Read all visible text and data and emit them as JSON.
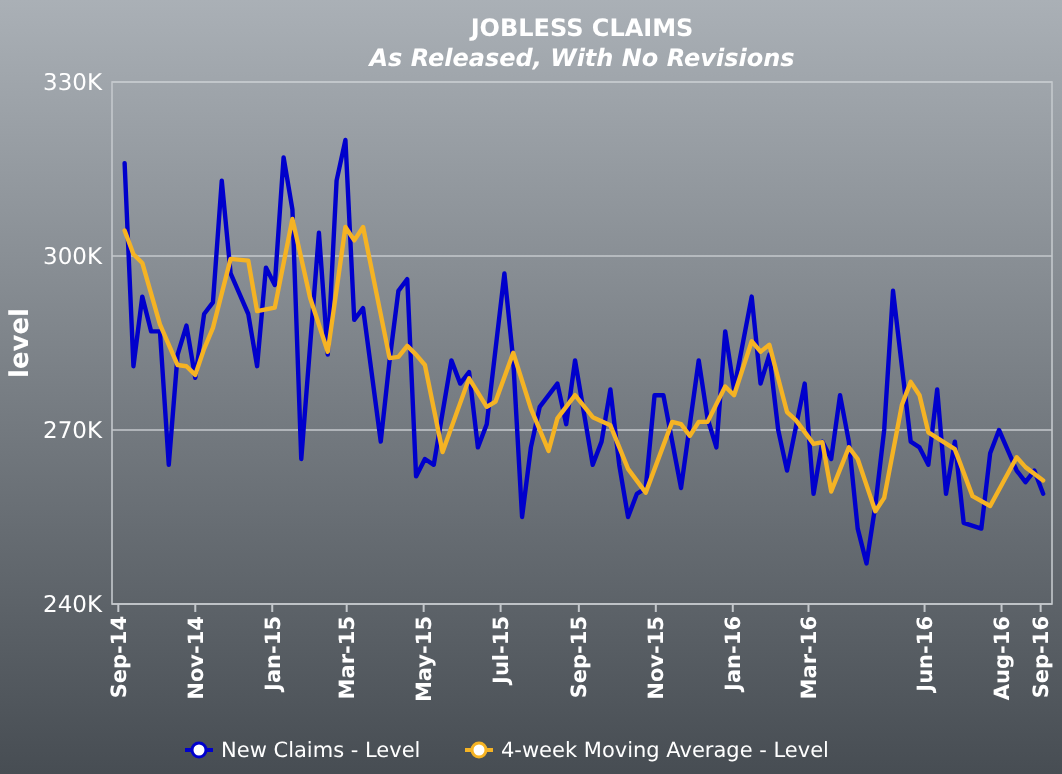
{
  "chart_data": {
    "type": "line",
    "title": "JOBLESS CLAIMS",
    "subtitle": "As Released, With No Revisions",
    "ylabel": "level",
    "xlim": [
      "2014-08-27",
      "2016-09-10"
    ],
    "xticks": [
      {
        "value": "2014-09-01",
        "label": "Sep-14"
      },
      {
        "value": "2014-11-01",
        "label": "Nov-14"
      },
      {
        "value": "2015-01-01",
        "label": "Jan-15"
      },
      {
        "value": "2015-03-01",
        "label": "Mar-15"
      },
      {
        "value": "2015-05-01",
        "label": "May-15"
      },
      {
        "value": "2015-07-01",
        "label": "Jul-15"
      },
      {
        "value": "2015-09-01",
        "label": "Sep-15"
      },
      {
        "value": "2015-11-01",
        "label": "Nov-15"
      },
      {
        "value": "2016-01-01",
        "label": "Jan-16"
      },
      {
        "value": "2016-03-01",
        "label": "Mar-16"
      },
      {
        "value": "2016-06-01",
        "label": "Jun-16"
      },
      {
        "value": "2016-08-01",
        "label": "Aug-16"
      },
      {
        "value": "2016-09-01",
        "label": "Sep-16"
      }
    ],
    "ylim": [
      240,
      330
    ],
    "yticks": [
      {
        "value": 240,
        "label": "240K"
      },
      {
        "value": 270,
        "label": "270K"
      },
      {
        "value": 300,
        "label": "300K"
      },
      {
        "value": 330,
        "label": "330K"
      }
    ],
    "grid": "y",
    "legend": "bottom",
    "series": [
      {
        "name": "New Claims - Level",
        "color": "#0000cc",
        "x": [
          "2014-09-06",
          "2014-09-13",
          "2014-09-20",
          "2014-09-27",
          "2014-10-04",
          "2014-10-11",
          "2014-10-18",
          "2014-10-25",
          "2014-11-01",
          "2014-11-08",
          "2014-11-15",
          "2014-11-22",
          "2014-11-29",
          "2014-12-13",
          "2014-12-20",
          "2014-12-27",
          "2015-01-03",
          "2015-01-10",
          "2015-01-17",
          "2015-01-24",
          "2015-02-07",
          "2015-02-14",
          "2015-02-21",
          "2015-02-28",
          "2015-03-07",
          "2015-03-14",
          "2015-03-28",
          "2015-04-04",
          "2015-04-11",
          "2015-04-18",
          "2015-04-25",
          "2015-05-02",
          "2015-05-09",
          "2015-05-23",
          "2015-05-30",
          "2015-06-06",
          "2015-06-13",
          "2015-06-20",
          "2015-07-04",
          "2015-07-11",
          "2015-07-18",
          "2015-07-25",
          "2015-08-01",
          "2015-08-15",
          "2015-08-22",
          "2015-08-29",
          "2015-09-12",
          "2015-09-19",
          "2015-09-26",
          "2015-10-03",
          "2015-10-10",
          "2015-10-17",
          "2015-10-24",
          "2015-10-31",
          "2015-11-07",
          "2015-11-21",
          "2015-12-05",
          "2015-12-12",
          "2015-12-19",
          "2015-12-26",
          "2016-01-02",
          "2016-01-16",
          "2016-01-23",
          "2016-01-30",
          "2016-02-06",
          "2016-02-13",
          "2016-02-27",
          "2016-03-05",
          "2016-03-12",
          "2016-03-19",
          "2016-03-26",
          "2016-04-02",
          "2016-04-09",
          "2016-04-16",
          "2016-04-23",
          "2016-04-30",
          "2016-05-07",
          "2016-05-14",
          "2016-05-21",
          "2016-05-28",
          "2016-06-04",
          "2016-06-11",
          "2016-06-18",
          "2016-06-25",
          "2016-07-02",
          "2016-07-16",
          "2016-07-23",
          "2016-07-30",
          "2016-08-13",
          "2016-08-20",
          "2016-08-27",
          "2016-09-03"
        ],
        "values": [
          316,
          281,
          293,
          287,
          287,
          264,
          283,
          288,
          279,
          290,
          292,
          313,
          297,
          290,
          281,
          298,
          295,
          317,
          308,
          265,
          304,
          283,
          313,
          320,
          289,
          291,
          268,
          282,
          294,
          296,
          262,
          265,
          264,
          282,
          278,
          280,
          267,
          271,
          297,
          282,
          255,
          267,
          274,
          278,
          271,
          282,
          264,
          268,
          277,
          264,
          255,
          259,
          260,
          276,
          276,
          260,
          282,
          272,
          267,
          287,
          277,
          293,
          278,
          283,
          270,
          263,
          278,
          259,
          268,
          265,
          276,
          268,
          253,
          247,
          257,
          270,
          294,
          281,
          268,
          267,
          264,
          277,
          259,
          268,
          254,
          253,
          266,
          270,
          263,
          261,
          263,
          259
        ]
      },
      {
        "name": "4-week Moving Average - Level",
        "color": "#f5b324",
        "x": [
          "2014-09-06",
          "2014-09-13",
          "2014-09-20",
          "2014-10-04",
          "2014-10-18",
          "2014-10-25",
          "2014-11-01",
          "2014-11-08",
          "2014-11-15",
          "2014-11-29",
          "2014-12-13",
          "2014-12-20",
          "2015-01-03",
          "2015-01-17",
          "2015-01-31",
          "2015-02-14",
          "2015-02-28",
          "2015-03-07",
          "2015-03-14",
          "2015-04-04",
          "2015-04-11",
          "2015-04-18",
          "2015-04-25",
          "2015-05-02",
          "2015-05-16",
          "2015-06-06",
          "2015-06-20",
          "2015-06-27",
          "2015-07-11",
          "2015-07-25",
          "2015-08-08",
          "2015-08-15",
          "2015-08-29",
          "2015-09-12",
          "2015-09-26",
          "2015-10-10",
          "2015-10-24",
          "2015-11-14",
          "2015-11-21",
          "2015-11-28",
          "2015-12-05",
          "2015-12-12",
          "2015-12-26",
          "2016-01-02",
          "2016-01-16",
          "2016-01-23",
          "2016-01-30",
          "2016-02-13",
          "2016-02-20",
          "2016-03-05",
          "2016-03-12",
          "2016-03-19",
          "2016-04-02",
          "2016-04-09",
          "2016-04-23",
          "2016-04-30",
          "2016-05-14",
          "2016-05-21",
          "2016-05-28",
          "2016-06-04",
          "2016-06-25",
          "2016-07-09",
          "2016-07-23",
          "2016-08-13",
          "2016-08-20",
          "2016-09-03"
        ],
        "values": [
          304.4,
          300.3,
          298.8,
          288.2,
          281.2,
          281,
          279.5,
          284,
          287.6,
          299.5,
          299.2,
          290.5,
          291.1,
          306.4,
          292.8,
          283.5,
          305,
          302.7,
          305,
          282.4,
          282.6,
          284.5,
          283,
          281.2,
          266.2,
          278.9,
          274,
          274.9,
          283.3,
          273.7,
          266.4,
          272,
          276,
          272.2,
          270.8,
          263.3,
          259.2,
          271.4,
          271,
          269,
          271.4,
          271.4,
          277.5,
          276,
          285.3,
          283.5,
          284.7,
          273.1,
          271.7,
          267.6,
          267.9,
          259.4,
          267,
          265,
          256,
          258.3,
          274.3,
          278.3,
          276,
          269.6,
          266.7,
          258.6,
          256.9,
          265.3,
          263.6,
          261.3
        ]
      }
    ]
  }
}
